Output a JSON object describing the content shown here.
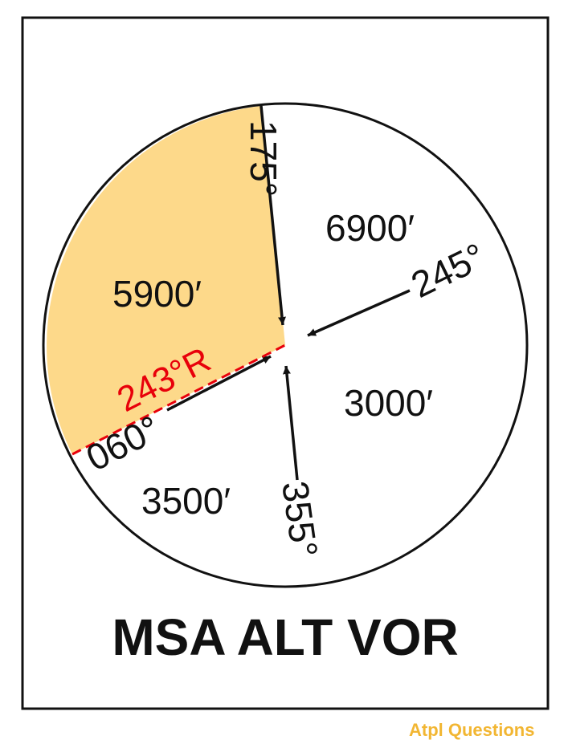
{
  "diagram": {
    "title": "MSA ALT VOR",
    "sectors": [
      {
        "altitude": "5900′",
        "highlighted": true
      },
      {
        "altitude": "6900′",
        "highlighted": false
      },
      {
        "altitude": "3000′",
        "highlighted": false
      },
      {
        "altitude": "3500′",
        "highlighted": false
      }
    ],
    "bearings": [
      {
        "label": "175°"
      },
      {
        "label": "245°"
      },
      {
        "label": "355°"
      },
      {
        "label": "060°"
      }
    ],
    "radial": {
      "label": "243°R",
      "color": "#e8000a"
    },
    "colors": {
      "highlight": "#fdd98a",
      "radial": "#e8000a",
      "ink": "#111111",
      "brand": "#f2b632"
    }
  },
  "branding": {
    "logo_text": "Atpl Questions"
  }
}
